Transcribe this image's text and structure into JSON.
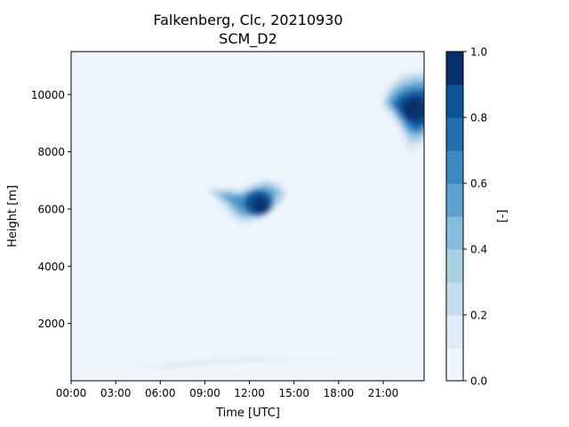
{
  "chart_data": {
    "type": "filled-contour",
    "title": "Falkenberg, Clc, 20210930",
    "subtitle": "SCM_D2",
    "xlabel": "Time [UTC]",
    "ylabel": "Height [m]",
    "colorbar_label": "[-]",
    "xlim_hours": [
      0,
      23.75
    ],
    "ylim": [
      0,
      11500
    ],
    "x_ticks": [
      {
        "hour": 0,
        "label": "00:00"
      },
      {
        "hour": 3,
        "label": "03:00"
      },
      {
        "hour": 6,
        "label": "06:00"
      },
      {
        "hour": 9,
        "label": "09:00"
      },
      {
        "hour": 12,
        "label": "12:00"
      },
      {
        "hour": 15,
        "label": "15:00"
      },
      {
        "hour": 18,
        "label": "18:00"
      },
      {
        "hour": 21,
        "label": "21:00"
      }
    ],
    "y_ticks": [
      {
        "value": 2000,
        "label": "2000"
      },
      {
        "value": 4000,
        "label": "4000"
      },
      {
        "value": 6000,
        "label": "6000"
      },
      {
        "value": 8000,
        "label": "8000"
      },
      {
        "value": 10000,
        "label": "10000"
      }
    ],
    "levels": [
      0.0,
      0.1,
      0.2,
      0.3,
      0.4,
      0.5,
      0.6,
      0.7,
      0.8,
      0.9,
      1.0
    ],
    "colorbar_ticks": [
      {
        "value": 0.0,
        "label": "0.0"
      },
      {
        "value": 0.2,
        "label": "0.2"
      },
      {
        "value": 0.4,
        "label": "0.4"
      },
      {
        "value": 0.6,
        "label": "0.6"
      },
      {
        "value": 0.8,
        "label": "0.8"
      },
      {
        "value": 1.0,
        "label": "1.0"
      }
    ],
    "colors": [
      "#eef5fc",
      "#deebf7",
      "#c6dbef",
      "#a9cfe5",
      "#84bcdb",
      "#5ba2d0",
      "#3a89c1",
      "#1f6eb1",
      "#0d539a",
      "#08306b"
    ],
    "cloud_features": [
      {
        "name": "low-cloud-layer",
        "time_range_h": [
          4.3,
          18.0
        ],
        "height_range_m": [
          350,
          900
        ],
        "max_fraction": 0.2
      },
      {
        "name": "mid-cloud",
        "time_range_h": [
          9.0,
          14.6
        ],
        "height_range_m": [
          5400,
          7100
        ],
        "max_fraction": 1.0
      },
      {
        "name": "upper-cloud",
        "time_range_h": [
          20.8,
          23.75
        ],
        "height_range_m": [
          7800,
          10800
        ],
        "max_fraction": 1.0
      }
    ]
  }
}
